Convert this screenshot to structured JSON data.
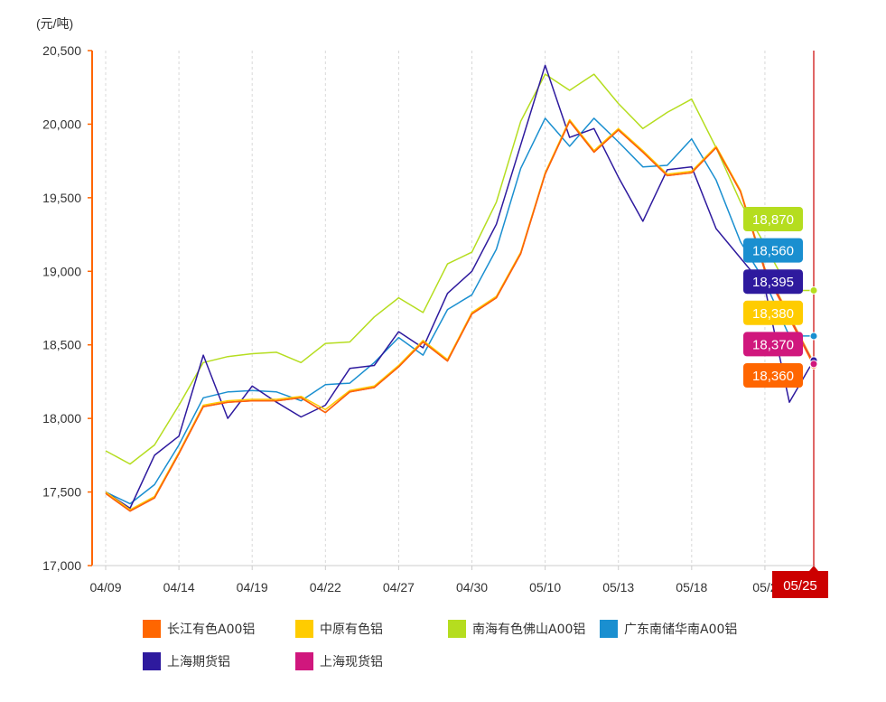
{
  "chart_data": {
    "type": "line",
    "unit_label": "(元/吨)",
    "ylim": [
      17000,
      20500
    ],
    "y_ticks": [
      "17,000",
      "17,500",
      "18,000",
      "18,500",
      "19,000",
      "19,500",
      "20,000",
      "20,500"
    ],
    "y_tick_values": [
      17000,
      17500,
      18000,
      18500,
      19000,
      19500,
      20000,
      20500
    ],
    "x_tick_labels": [
      "04/09",
      "04/14",
      "04/19",
      "04/22",
      "04/27",
      "04/30",
      "05/10",
      "05/13",
      "05/18",
      "05/2"
    ],
    "x_tick_dates": [
      "04/09",
      "04/14",
      "04/19",
      "04/22",
      "04/27",
      "04/30",
      "05/10",
      "05/13",
      "05/18",
      "05/21"
    ],
    "x": [
      "04/09",
      "04/12",
      "04/13",
      "04/14",
      "04/15",
      "04/16",
      "04/19",
      "04/20",
      "04/21",
      "04/22",
      "04/23",
      "04/26",
      "04/27",
      "04/28",
      "04/29",
      "04/30",
      "05/06",
      "05/07",
      "05/10",
      "05/11",
      "05/12",
      "05/13",
      "05/14",
      "05/17",
      "05/18",
      "05/19",
      "05/20",
      "05/21",
      "05/24",
      "05/25"
    ],
    "grid": "vertical-dashed",
    "legend_position": "bottom",
    "cursor_label": "05/25",
    "series": [
      {
        "name": "长江有色A00铝",
        "color": "#ff6600",
        "values": [
          17490,
          17370,
          17460,
          17760,
          18080,
          18110,
          18120,
          18120,
          18140,
          18040,
          18180,
          18210,
          18350,
          18520,
          18390,
          18710,
          18820,
          19120,
          19660,
          20020,
          19810,
          19960,
          19810,
          19650,
          19670,
          19840,
          19540,
          19000,
          18680,
          18360
        ]
      },
      {
        "name": "中原有色铝",
        "color": "#ffcc00",
        "values": [
          17500,
          17380,
          17470,
          17770,
          18090,
          18120,
          18130,
          18130,
          18150,
          18060,
          18190,
          18220,
          18360,
          18530,
          18400,
          18720,
          18830,
          19130,
          19670,
          20030,
          19820,
          19970,
          19820,
          19660,
          19680,
          19850,
          19550,
          19020,
          18700,
          18380
        ]
      },
      {
        "name": "南海有色佛山A00铝",
        "color": "#b5dd1f",
        "values": [
          17780,
          17690,
          17820,
          18090,
          18380,
          18420,
          18440,
          18450,
          18380,
          18510,
          18520,
          18690,
          18820,
          18720,
          19050,
          19130,
          19470,
          20020,
          20340,
          20230,
          20340,
          20140,
          19970,
          20080,
          20170,
          19840,
          19470,
          19180,
          18870,
          18870
        ]
      },
      {
        "name": "广东南储华南A00铝",
        "color": "#1a8fd0",
        "values": [
          17500,
          17420,
          17550,
          17820,
          18140,
          18180,
          18190,
          18180,
          18120,
          18230,
          18240,
          18380,
          18550,
          18430,
          18740,
          18840,
          19150,
          19700,
          20040,
          19850,
          20040,
          19880,
          19710,
          19720,
          19900,
          19620,
          19200,
          18930,
          18560,
          18560
        ]
      },
      {
        "name": "上海期货铝",
        "color": "#2e1a9e",
        "values": [
          17500,
          17390,
          17750,
          17880,
          18430,
          18000,
          18220,
          18110,
          18010,
          18090,
          18340,
          18360,
          18590,
          18480,
          18850,
          19000,
          19320,
          19860,
          20400,
          19910,
          19970,
          19640,
          19340,
          19690,
          19710,
          19290,
          19090,
          18890,
          18110,
          18395
        ]
      },
      {
        "name": "上海现货铝",
        "color": "#d0177d",
        "values": [
          17490,
          17370,
          17460,
          17760,
          18080,
          18110,
          18120,
          18120,
          18140,
          18040,
          18180,
          18210,
          18350,
          18520,
          18390,
          18710,
          18820,
          19120,
          19660,
          20020,
          19810,
          19960,
          19810,
          19650,
          19670,
          19840,
          19540,
          19010,
          18690,
          18370
        ]
      }
    ],
    "tooltips": [
      {
        "label": "18,870",
        "color": "#b5dd1f"
      },
      {
        "label": "18,560",
        "color": "#1a8fd0"
      },
      {
        "label": "18,395",
        "color": "#2e1a9e"
      },
      {
        "label": "18,380",
        "color": "#ffcc00"
      },
      {
        "label": "18,370",
        "color": "#d0177d"
      },
      {
        "label": "18,360",
        "color": "#ff6600"
      }
    ]
  }
}
